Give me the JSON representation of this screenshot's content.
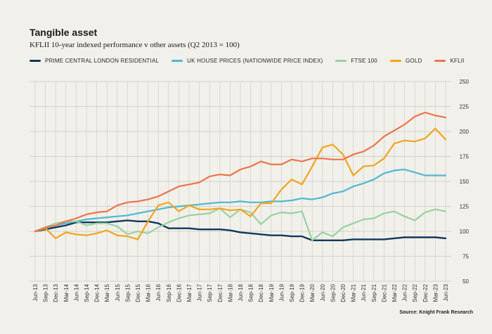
{
  "header": {
    "title": "Tangible asset",
    "subtitle": "KFLII 10-year indexed performance v other assets (Q2 2013 = 100)"
  },
  "footer": {
    "source": "Source: Knight Frank Research"
  },
  "colors": {
    "background": "#f1f0ea",
    "grid": "#c9c8c1",
    "pcl": "#13385f",
    "uk": "#4fb8d2",
    "ftse": "#98d2a3",
    "gold": "#f2a51f",
    "kflii": "#ef744a"
  },
  "chart_data": {
    "type": "line",
    "title": "KFLII 10-year indexed performance v other assets (Q2 2013 = 100)",
    "xlabel": "",
    "ylabel": "",
    "ylim": [
      50,
      250
    ],
    "yticks": [
      50,
      75,
      100,
      125,
      150,
      175,
      200,
      225,
      250
    ],
    "categories": [
      "Jun-13",
      "Sep-13",
      "Dec-13",
      "Mar-14",
      "Jun-14",
      "Sep-14",
      "Dec-14",
      "Mar-15",
      "Jun-15",
      "Sep-15",
      "Dec-15",
      "Mar-16",
      "Jun-16",
      "Sep-16",
      "Dec-16",
      "Mar-17",
      "Jun-17",
      "Sep-17",
      "Dec-17",
      "Mar-18",
      "Jun-18",
      "Sep-18",
      "Dec-18",
      "Mar-19",
      "Jun-19",
      "Sep-19",
      "Dec-19",
      "Mar-20",
      "Jun-20",
      "Sep-20",
      "Dec-20",
      "Mar-21",
      "Jun-21",
      "Sep-21",
      "Dec-21",
      "Mar-22",
      "Jun-22",
      "Sep-22",
      "Dec-22",
      "Mar-23",
      "Jun-23"
    ],
    "series": [
      {
        "name": "PRIME CENTRAL LONDON RESIDENTIAL",
        "color": "#13385f",
        "values": [
          100,
          102,
          104,
          106,
          109,
          109,
          109,
          109,
          110,
          111,
          110,
          110,
          108,
          103,
          103,
          103,
          102,
          102,
          102,
          101,
          99,
          98,
          97,
          96,
          96,
          95,
          95,
          91,
          91,
          91,
          91,
          92,
          92,
          92,
          92,
          93,
          94,
          94,
          94,
          94,
          93
        ]
      },
      {
        "name": "UK HOUSE PRICES (NATIONWIDE PRICE INDEX)",
        "color": "#4fb8d2",
        "values": [
          100,
          103,
          106,
          108,
          110,
          112,
          113,
          114,
          115,
          116,
          118,
          120,
          122,
          124,
          125,
          126,
          127,
          128,
          129,
          129,
          130,
          129,
          129,
          130,
          130,
          131,
          133,
          132,
          134,
          138,
          140,
          145,
          148,
          152,
          158,
          161,
          162,
          159,
          156,
          156,
          156
        ]
      },
      {
        "name": "FTSE 100",
        "color": "#98d2a3",
        "values": [
          100,
          104,
          108,
          110,
          110,
          106,
          108,
          108,
          105,
          97,
          100,
          98,
          104,
          109,
          113,
          116,
          117,
          118,
          123,
          114,
          122,
          119,
          107,
          116,
          119,
          118,
          120,
          91,
          99,
          95,
          104,
          108,
          112,
          113,
          118,
          120,
          115,
          111,
          119,
          122,
          120
        ]
      },
      {
        "name": "GOLD",
        "color": "#f2a51f",
        "values": [
          100,
          103,
          93,
          99,
          97,
          96,
          98,
          101,
          96,
          95,
          92,
          110,
          126,
          129,
          120,
          126,
          122,
          122,
          123,
          121,
          122,
          115,
          128,
          128,
          142,
          152,
          147,
          165,
          184,
          187,
          177,
          156,
          165,
          166,
          173,
          188,
          191,
          190,
          193,
          203,
          192
        ]
      },
      {
        "name": "KFLII",
        "color": "#ef744a",
        "values": [
          100,
          104,
          106,
          110,
          113,
          117,
          119,
          120,
          126,
          129,
          130,
          132,
          135,
          140,
          145,
          147,
          149,
          155,
          157,
          156,
          162,
          165,
          170,
          167,
          167,
          172,
          170,
          173,
          173,
          172,
          172,
          177,
          180,
          186,
          195,
          201,
          207,
          215,
          219,
          216,
          214
        ]
      }
    ]
  }
}
